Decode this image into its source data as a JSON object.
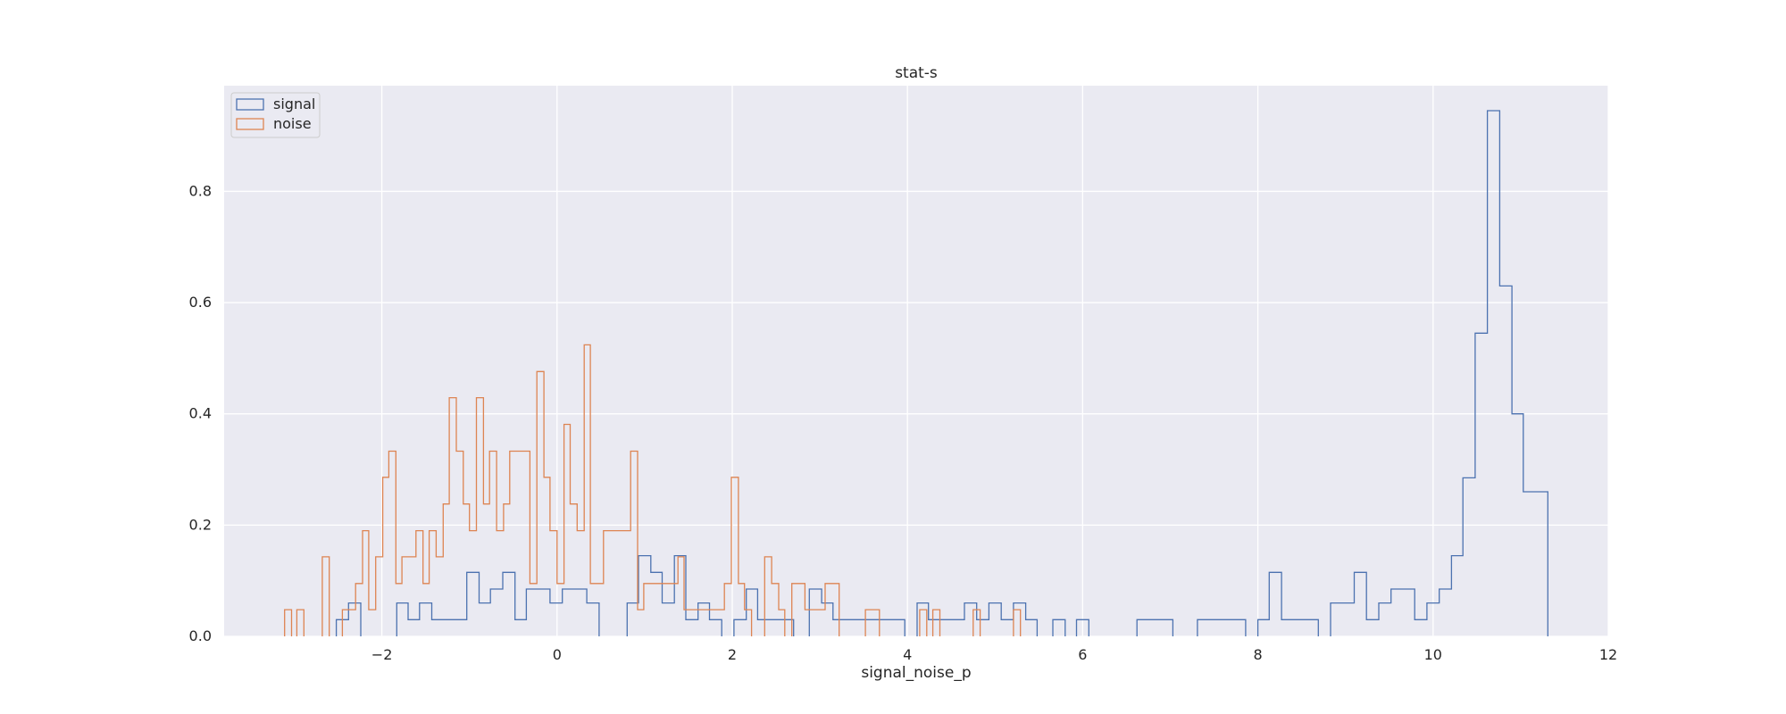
{
  "chart_data": {
    "type": "histogram-step",
    "title": "stat-s",
    "xlabel": "signal_noise_p",
    "ylabel": "",
    "xlim": [
      -3.8,
      12
    ],
    "ylim": [
      0,
      0.99
    ],
    "x_ticks": [
      -2,
      0,
      2,
      4,
      6,
      8,
      10,
      12
    ],
    "x_tick_labels": [
      "−2",
      "0",
      "2",
      "4",
      "6",
      "8",
      "10",
      "12"
    ],
    "y_ticks": [
      0.0,
      0.2,
      0.4,
      0.6,
      0.8
    ],
    "y_tick_labels": [
      "0.0",
      "0.2",
      "0.4",
      "0.6",
      "0.8"
    ],
    "grid": true,
    "legend_position": "top-left",
    "series": [
      {
        "name": "signal",
        "color": "#4c72b0",
        "bins": [
          [
            -2.52,
            -2.38,
            0.03
          ],
          [
            -2.38,
            -2.24,
            0.06
          ],
          [
            -1.83,
            -1.7,
            0.06
          ],
          [
            -1.7,
            -1.57,
            0.03
          ],
          [
            -1.57,
            -1.43,
            0.06
          ],
          [
            -1.43,
            -1.3,
            0.03
          ],
          [
            -1.3,
            -1.16,
            0.03
          ],
          [
            -1.16,
            -1.03,
            0.03
          ],
          [
            -1.03,
            -0.89,
            0.115
          ],
          [
            -0.89,
            -0.76,
            0.06
          ],
          [
            -0.76,
            -0.62,
            0.085
          ],
          [
            -0.62,
            -0.48,
            0.115
          ],
          [
            -0.48,
            -0.35,
            0.03
          ],
          [
            -0.35,
            -0.22,
            0.085
          ],
          [
            -0.22,
            -0.08,
            0.085
          ],
          [
            -0.08,
            0.06,
            0.06
          ],
          [
            0.06,
            0.2,
            0.085
          ],
          [
            0.2,
            0.34,
            0.085
          ],
          [
            0.34,
            0.48,
            0.06
          ],
          [
            0.8,
            0.93,
            0.06
          ],
          [
            0.93,
            1.07,
            0.145
          ],
          [
            1.07,
            1.2,
            0.115
          ],
          [
            1.2,
            1.34,
            0.06
          ],
          [
            1.34,
            1.47,
            0.145
          ],
          [
            1.47,
            1.61,
            0.03
          ],
          [
            1.61,
            1.74,
            0.06
          ],
          [
            1.74,
            1.88,
            0.03
          ],
          [
            2.02,
            2.16,
            0.03
          ],
          [
            2.16,
            2.29,
            0.085
          ],
          [
            2.29,
            2.43,
            0.03
          ],
          [
            2.43,
            2.56,
            0.03
          ],
          [
            2.56,
            2.7,
            0.03
          ],
          [
            2.88,
            3.02,
            0.085
          ],
          [
            3.02,
            3.15,
            0.06
          ],
          [
            3.15,
            3.29,
            0.03
          ],
          [
            3.29,
            3.42,
            0.03
          ],
          [
            3.42,
            3.56,
            0.03
          ],
          [
            3.56,
            3.7,
            0.03
          ],
          [
            3.7,
            3.83,
            0.03
          ],
          [
            3.83,
            3.97,
            0.03
          ],
          [
            4.11,
            4.24,
            0.06
          ],
          [
            4.24,
            4.38,
            0.03
          ],
          [
            4.38,
            4.52,
            0.03
          ],
          [
            4.52,
            4.65,
            0.03
          ],
          [
            4.65,
            4.79,
            0.06
          ],
          [
            4.79,
            4.93,
            0.03
          ],
          [
            4.93,
            5.07,
            0.06
          ],
          [
            5.07,
            5.21,
            0.03
          ],
          [
            5.21,
            5.35,
            0.06
          ],
          [
            5.35,
            5.48,
            0.03
          ],
          [
            5.66,
            5.8,
            0.03
          ],
          [
            5.93,
            6.07,
            0.03
          ],
          [
            6.62,
            7.03,
            0.03
          ],
          [
            7.31,
            7.86,
            0.03
          ],
          [
            8.0,
            8.13,
            0.03
          ],
          [
            8.13,
            8.27,
            0.115
          ],
          [
            8.27,
            8.69,
            0.03
          ],
          [
            8.83,
            9.1,
            0.06
          ],
          [
            9.1,
            9.24,
            0.115
          ],
          [
            9.24,
            9.38,
            0.03
          ],
          [
            9.38,
            9.52,
            0.06
          ],
          [
            9.52,
            9.79,
            0.085
          ],
          [
            9.79,
            9.93,
            0.03
          ],
          [
            9.93,
            10.07,
            0.06
          ],
          [
            10.07,
            10.21,
            0.085
          ],
          [
            10.21,
            10.34,
            0.145
          ],
          [
            10.34,
            10.48,
            0.285
          ],
          [
            10.48,
            10.62,
            0.545
          ],
          [
            10.62,
            10.76,
            0.945
          ],
          [
            10.76,
            10.9,
            0.63
          ],
          [
            10.9,
            11.03,
            0.4
          ],
          [
            11.03,
            11.31,
            0.26
          ]
        ]
      },
      {
        "name": "noise",
        "color": "#dd8452",
        "bins": [
          [
            -3.11,
            -3.03,
            0.048
          ],
          [
            -2.97,
            -2.89,
            0.048
          ],
          [
            -2.68,
            -2.6,
            0.143
          ],
          [
            -2.45,
            -2.38,
            0.048
          ],
          [
            -2.38,
            -2.3,
            0.048
          ],
          [
            -2.3,
            -2.22,
            0.095
          ],
          [
            -2.22,
            -2.15,
            0.19
          ],
          [
            -2.15,
            -2.07,
            0.048
          ],
          [
            -2.07,
            -1.99,
            0.143
          ],
          [
            -1.99,
            -1.92,
            0.286
          ],
          [
            -1.92,
            -1.84,
            0.333
          ],
          [
            -1.84,
            -1.77,
            0.095
          ],
          [
            -1.77,
            -1.69,
            0.143
          ],
          [
            -1.69,
            -1.61,
            0.143
          ],
          [
            -1.61,
            -1.53,
            0.19
          ],
          [
            -1.53,
            -1.46,
            0.095
          ],
          [
            -1.46,
            -1.38,
            0.19
          ],
          [
            -1.38,
            -1.3,
            0.143
          ],
          [
            -1.3,
            -1.23,
            0.238
          ],
          [
            -1.23,
            -1.15,
            0.429
          ],
          [
            -1.15,
            -1.07,
            0.333
          ],
          [
            -1.07,
            -1.0,
            0.238
          ],
          [
            -1.0,
            -0.92,
            0.19
          ],
          [
            -0.92,
            -0.84,
            0.429
          ],
          [
            -0.84,
            -0.77,
            0.238
          ],
          [
            -0.77,
            -0.69,
            0.333
          ],
          [
            -0.69,
            -0.61,
            0.19
          ],
          [
            -0.61,
            -0.54,
            0.238
          ],
          [
            -0.54,
            -0.46,
            0.333
          ],
          [
            -0.46,
            -0.38,
            0.333
          ],
          [
            -0.38,
            -0.31,
            0.333
          ],
          [
            -0.31,
            -0.23,
            0.095
          ],
          [
            -0.23,
            -0.15,
            0.476
          ],
          [
            -0.15,
            -0.08,
            0.286
          ],
          [
            -0.08,
            0.0,
            0.19
          ],
          [
            0.0,
            0.08,
            0.095
          ],
          [
            0.08,
            0.15,
            0.381
          ],
          [
            0.15,
            0.23,
            0.238
          ],
          [
            0.23,
            0.31,
            0.19
          ],
          [
            0.31,
            0.38,
            0.524
          ],
          [
            0.38,
            0.46,
            0.095
          ],
          [
            0.46,
            0.53,
            0.095
          ],
          [
            0.53,
            0.61,
            0.19
          ],
          [
            0.61,
            0.69,
            0.19
          ],
          [
            0.69,
            0.76,
            0.19
          ],
          [
            0.76,
            0.84,
            0.19
          ],
          [
            0.84,
            0.92,
            0.333
          ],
          [
            0.92,
            0.99,
            0.048
          ],
          [
            0.99,
            1.07,
            0.095
          ],
          [
            1.07,
            1.15,
            0.095
          ],
          [
            1.15,
            1.22,
            0.095
          ],
          [
            1.22,
            1.3,
            0.095
          ],
          [
            1.3,
            1.38,
            0.095
          ],
          [
            1.38,
            1.45,
            0.143
          ],
          [
            1.45,
            1.53,
            0.048
          ],
          [
            1.53,
            1.61,
            0.048
          ],
          [
            1.61,
            1.68,
            0.048
          ],
          [
            1.68,
            1.76,
            0.048
          ],
          [
            1.76,
            1.84,
            0.048
          ],
          [
            1.84,
            1.91,
            0.048
          ],
          [
            1.91,
            1.99,
            0.095
          ],
          [
            1.99,
            2.07,
            0.286
          ],
          [
            2.07,
            2.14,
            0.095
          ],
          [
            2.14,
            2.22,
            0.048
          ],
          [
            2.37,
            2.45,
            0.143
          ],
          [
            2.45,
            2.53,
            0.095
          ],
          [
            2.53,
            2.6,
            0.048
          ],
          [
            2.68,
            2.76,
            0.095
          ],
          [
            2.76,
            2.83,
            0.095
          ],
          [
            2.83,
            2.91,
            0.048
          ],
          [
            2.91,
            2.99,
            0.048
          ],
          [
            2.99,
            3.06,
            0.048
          ],
          [
            3.06,
            3.14,
            0.095
          ],
          [
            3.14,
            3.22,
            0.095
          ],
          [
            3.52,
            3.6,
            0.048
          ],
          [
            3.6,
            3.68,
            0.048
          ],
          [
            4.14,
            4.22,
            0.048
          ],
          [
            4.29,
            4.37,
            0.048
          ],
          [
            4.75,
            4.83,
            0.048
          ],
          [
            5.21,
            5.29,
            0.048
          ]
        ]
      }
    ]
  }
}
